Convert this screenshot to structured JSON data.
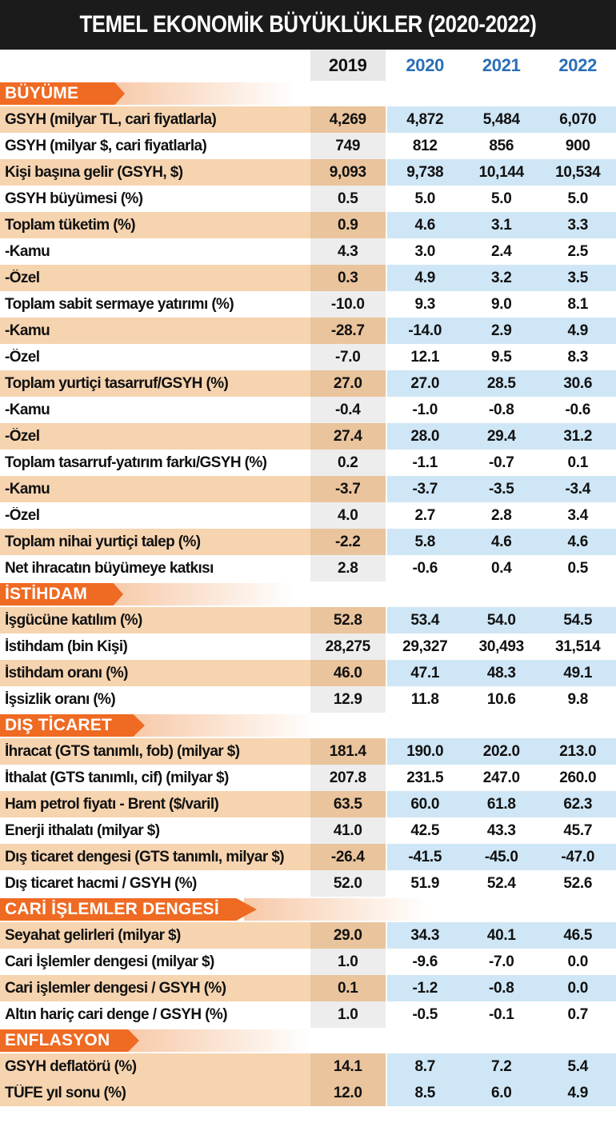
{
  "title": "TEMEL EKONOMİK BÜYÜKLÜKLER (2020-2022)",
  "years": [
    "2019",
    "2020",
    "2021",
    "2022"
  ],
  "sections": [
    {
      "name": "BÜYÜME",
      "rows": [
        {
          "label": "GSYH (milyar TL, cari fiyatlarla)",
          "values": [
            "4,269",
            "4,872",
            "5,484",
            "6,070"
          ]
        },
        {
          "label": "GSYH (milyar $, cari fiyatlarla)",
          "values": [
            "749",
            "812",
            "856",
            "900"
          ]
        },
        {
          "label": "Kişi başına gelir (GSYH, $)",
          "values": [
            "9,093",
            "9,738",
            "10,144",
            "10,534"
          ]
        },
        {
          "label": "GSYH büyümesi (%)",
          "values": [
            "0.5",
            "5.0",
            "5.0",
            "5.0"
          ]
        },
        {
          "label": "Toplam tüketim (%)",
          "values": [
            "0.9",
            "4.6",
            "3.1",
            "3.3"
          ]
        },
        {
          "label": "-Kamu",
          "values": [
            "4.3",
            "3.0",
            "2.4",
            "2.5"
          ]
        },
        {
          "label": "-Özel",
          "values": [
            "0.3",
            "4.9",
            "3.2",
            "3.5"
          ]
        },
        {
          "label": "Toplam sabit sermaye yatırımı (%)",
          "values": [
            "-10.0",
            "9.3",
            "9.0",
            "8.1"
          ]
        },
        {
          "label": "-Kamu",
          "values": [
            "-28.7",
            "-14.0",
            "2.9",
            "4.9"
          ]
        },
        {
          "label": "-Özel",
          "values": [
            "-7.0",
            "12.1",
            "9.5",
            "8.3"
          ]
        },
        {
          "label": "Toplam yurtiçi tasarruf/GSYH (%)",
          "values": [
            "27.0",
            "27.0",
            "28.5",
            "30.6"
          ]
        },
        {
          "label": "-Kamu",
          "values": [
            "-0.4",
            "-1.0",
            "-0.8",
            "-0.6"
          ]
        },
        {
          "label": "-Özel",
          "values": [
            "27.4",
            "28.0",
            "29.4",
            "31.2"
          ]
        },
        {
          "label": "Toplam tasarruf-yatırım farkı/GSYH (%)",
          "values": [
            "0.2",
            "-1.1",
            "-0.7",
            "0.1"
          ]
        },
        {
          "label": "-Kamu",
          "values": [
            "-3.7",
            "-3.7",
            "-3.5",
            "-3.4"
          ]
        },
        {
          "label": "-Özel",
          "values": [
            "4.0",
            "2.7",
            "2.8",
            "3.4"
          ]
        },
        {
          "label": "Toplam nihai yurtiçi talep (%)",
          "values": [
            "-2.2",
            "5.8",
            "4.6",
            "4.6"
          ]
        },
        {
          "label": "Net ihracatın büyümeye katkısı",
          "values": [
            "2.8",
            "-0.6",
            "0.4",
            "0.5"
          ]
        }
      ]
    },
    {
      "name": "İSTİHDAM",
      "rows": [
        {
          "label": "İşgücüne katılım (%)",
          "values": [
            "52.8",
            "53.4",
            "54.0",
            "54.5"
          ]
        },
        {
          "label": "İstihdam (bin Kişi)",
          "values": [
            "28,275",
            "29,327",
            "30,493",
            "31,514"
          ]
        },
        {
          "label": "İstihdam oranı (%)",
          "values": [
            "46.0",
            "47.1",
            "48.3",
            "49.1"
          ]
        },
        {
          "label": "İşsizlik oranı (%)",
          "values": [
            "12.9",
            "11.8",
            "10.6",
            "9.8"
          ]
        }
      ]
    },
    {
      "name": "DIŞ TİCARET",
      "rows": [
        {
          "label": "İhracat (GTS tanımlı, fob) (milyar $)",
          "values": [
            "181.4",
            "190.0",
            "202.0",
            "213.0"
          ]
        },
        {
          "label": "İthalat (GTS tanımlı, cif) (milyar $)",
          "values": [
            "207.8",
            "231.5",
            "247.0",
            "260.0"
          ]
        },
        {
          "label": "Ham petrol fiyatı - Brent ($/varil)",
          "values": [
            "63.5",
            "60.0",
            "61.8",
            "62.3"
          ]
        },
        {
          "label": "Enerji ithalatı (milyar $)",
          "values": [
            "41.0",
            "42.5",
            "43.3",
            "45.7"
          ]
        },
        {
          "label": "Dış ticaret dengesi (GTS tanımlı, milyar $)",
          "values": [
            "-26.4",
            "-41.5",
            "-45.0",
            "-47.0"
          ]
        },
        {
          "label": "Dış ticaret hacmi / GSYH (%)",
          "values": [
            "52.0",
            "51.9",
            "52.4",
            "52.6"
          ]
        }
      ]
    },
    {
      "name": "CARİ İŞLEMLER DENGESİ",
      "rows": [
        {
          "label": "Seyahat gelirleri (milyar $)",
          "values": [
            "29.0",
            "34.3",
            "40.1",
            "46.5"
          ]
        },
        {
          "label": "Cari İşlemler dengesi (milyar $)",
          "values": [
            "1.0",
            "-9.6",
            "-7.0",
            "0.0"
          ]
        },
        {
          "label": "Cari işlemler dengesi / GSYH (%)",
          "values": [
            "0.1",
            "-1.2",
            "-0.8",
            "0.0"
          ]
        },
        {
          "label": "Altın hariç cari denge / GSYH (%)",
          "values": [
            "1.0",
            "-0.5",
            "-0.1",
            "0.7"
          ]
        }
      ]
    },
    {
      "name": "ENFLASYON",
      "rows": [
        {
          "label": "GSYH deflatörü (%)",
          "values": [
            "14.1",
            "8.7",
            "7.2",
            "5.4"
          ]
        },
        {
          "label": "TÜFE yıl sonu (%)",
          "values": [
            "12.0",
            "8.5",
            "6.0",
            "4.9"
          ]
        }
      ]
    }
  ],
  "colors": {
    "header_bg": "#1b1b1b",
    "section_tab": "#ef6a22",
    "row_shade": "#f6d4b0",
    "shade_blue": "#cfe6f6",
    "year_blue": "#2a6fb6"
  }
}
